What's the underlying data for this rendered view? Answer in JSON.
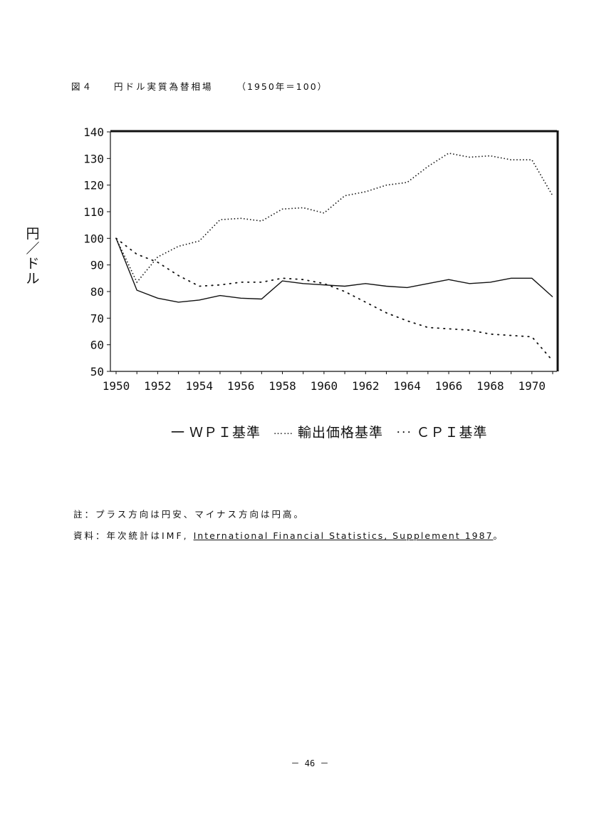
{
  "figure": {
    "label": "図４",
    "title": "円ドル実質為替相場",
    "subtitle": "（1950年＝100）"
  },
  "y_axis_label": [
    "円",
    "／",
    "ド",
    "ル"
  ],
  "chart_data": {
    "type": "line",
    "x": [
      1950,
      1951,
      1952,
      1953,
      1954,
      1955,
      1956,
      1957,
      1958,
      1959,
      1960,
      1961,
      1962,
      1963,
      1964,
      1965,
      1966,
      1967,
      1968,
      1969,
      1970,
      1971
    ],
    "x_tick_labels": [
      "1950",
      "1952",
      "1954",
      "1956",
      "1958",
      "1960",
      "1962",
      "1964",
      "1966",
      "1968",
      "1970"
    ],
    "ylim": [
      50,
      140
    ],
    "y_ticks": [
      50,
      60,
      70,
      80,
      90,
      100,
      110,
      120,
      130,
      140
    ],
    "series": [
      {
        "name": "WPI基準",
        "style": "solid",
        "values": [
          100,
          80.5,
          77.5,
          76,
          76.8,
          78.5,
          77.5,
          77.2,
          84,
          83,
          82.5,
          82,
          83,
          82,
          81.5,
          83,
          84.5,
          83,
          83.5,
          85,
          85,
          78
        ]
      },
      {
        "name": "輸出価格基準",
        "style": "dotted",
        "values": [
          100,
          83.5,
          93,
          97,
          99,
          107,
          107.5,
          106.5,
          111,
          111.5,
          109.5,
          116,
          117.5,
          120,
          121,
          127,
          132,
          130.5,
          131,
          129.5,
          129.5,
          116
        ]
      },
      {
        "name": "CPI基準",
        "style": "sparse",
        "values": [
          100,
          94,
          91,
          86,
          82,
          82.5,
          83.5,
          83.5,
          85,
          84.5,
          83,
          80,
          76,
          72,
          69,
          66.5,
          66,
          65.5,
          64,
          63.5,
          63,
          54
        ]
      }
    ]
  },
  "legend": [
    {
      "symbol": "一",
      "label": "ＷＰＩ基準"
    },
    {
      "symbol": "……",
      "label": "輸出価格基準"
    },
    {
      "symbol": "･･･",
      "label": "ＣＰＩ基準"
    }
  ],
  "notes": {
    "note1": "註：プラス方向は円安、マイナス方向は円高。",
    "source_prefix": "資料：年次統計はIMF,",
    "source_title": "International Financial Statistics, Supplement 1987",
    "source_suffix": "。"
  },
  "page_number": "－ 46 －"
}
